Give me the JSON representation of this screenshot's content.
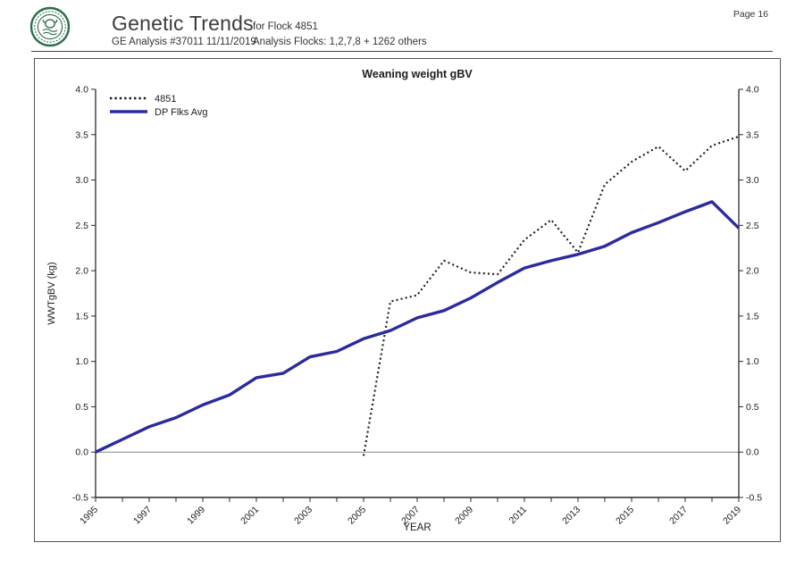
{
  "header": {
    "title": "Genetic Trends",
    "subtitle": "GE Analysis #37011 11/11/2019",
    "for_flock": "for Flock 4851",
    "analysis_flocks": "Analysis Flocks: 1,2,7,8 + 1262 others",
    "logo_name": "sil-green-crest-logo",
    "page_label": "Page 16"
  },
  "colors": {
    "flock_line": "#1a1a1a",
    "avg_line": "#2b2b9e",
    "axis": "#2a2a2a",
    "zero_line": "#858585",
    "logo_green": "#2a6e4a"
  },
  "chart_data": {
    "type": "line",
    "title": "Weaning weight gBV",
    "xlabel": "YEAR",
    "ylabel": "WWTgBV (kg)",
    "ylim": [
      -0.5,
      4.0
    ],
    "grid": false,
    "zero_line": true,
    "legend_position": "top-left",
    "xtick_rotation": 45,
    "x": [
      1995,
      1996,
      1997,
      1998,
      1999,
      2000,
      2001,
      2002,
      2003,
      2004,
      2005,
      2006,
      2007,
      2008,
      2009,
      2010,
      2011,
      2012,
      2013,
      2014,
      2015,
      2016,
      2017,
      2018,
      2019
    ],
    "xtick_labels": [
      "1995",
      "1997",
      "1999",
      "2001",
      "2003",
      "2005",
      "2007",
      "2009",
      "2011",
      "2013",
      "2015",
      "2017",
      "2019"
    ],
    "ytick_labels": [
      "-0.5",
      "0.0",
      "0.5",
      "1.0",
      "1.5",
      "2.0",
      "2.5",
      "3.0",
      "3.5",
      "4.0"
    ],
    "series": [
      {
        "name": "4851",
        "style": "dotted",
        "color_key": "flock_line",
        "values": [
          null,
          null,
          null,
          null,
          null,
          null,
          null,
          null,
          null,
          null,
          -0.04,
          1.66,
          1.73,
          2.11,
          1.98,
          1.96,
          2.34,
          2.56,
          2.2,
          2.95,
          3.2,
          3.37,
          3.1,
          3.38,
          3.48
        ]
      },
      {
        "name": "DP Flks Avg",
        "style": "solid",
        "color_key": "avg_line",
        "values": [
          0.0,
          0.14,
          0.28,
          0.38,
          0.52,
          0.63,
          0.82,
          0.87,
          1.05,
          1.11,
          1.25,
          1.34,
          1.48,
          1.56,
          1.7,
          1.87,
          2.03,
          2.11,
          2.18,
          2.27,
          2.42,
          2.53,
          2.65,
          2.76,
          2.47
        ]
      }
    ]
  }
}
